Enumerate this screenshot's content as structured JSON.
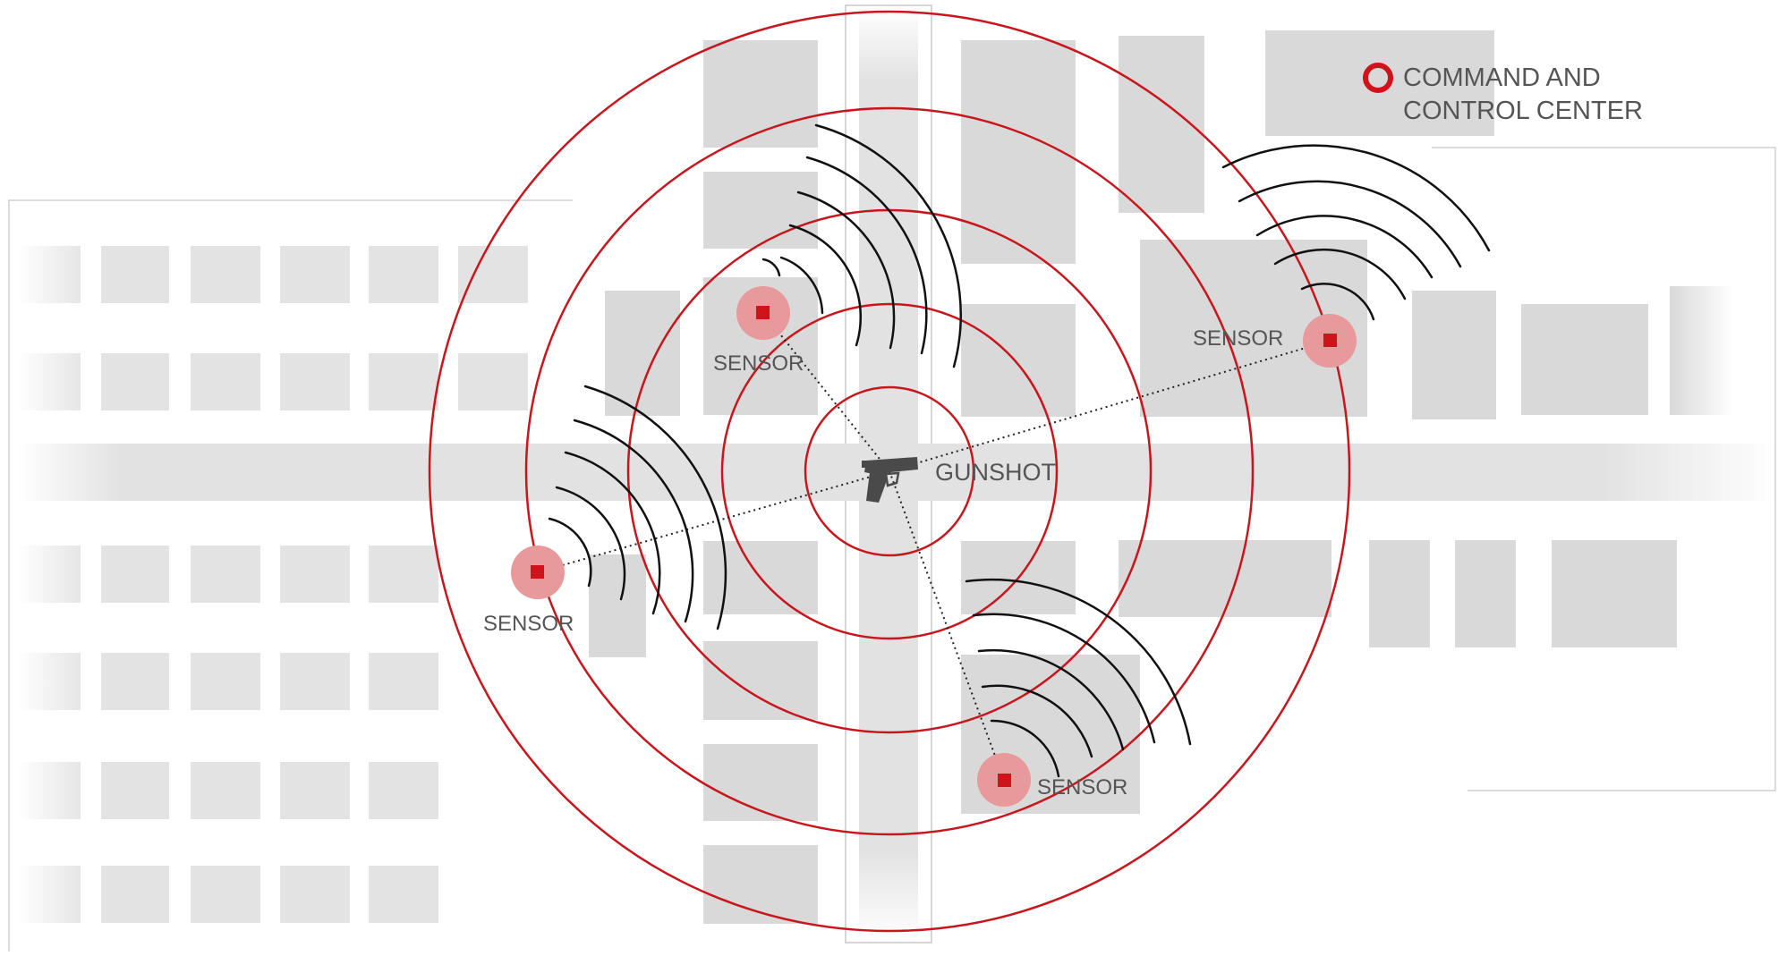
{
  "labels": {
    "gunshot": "GUNSHOT",
    "legend": [
      "COMMAND AND",
      "CONTROL CENTER"
    ],
    "sensors": [
      "SENSOR",
      "SENSOR",
      "SENSOR",
      "SENSOR"
    ]
  },
  "colors": {
    "ring": "#c8161d",
    "sensor_core": "#d0121b",
    "sensor_halo": "#e8999c",
    "building": "#d9d9d9",
    "text": "#555555",
    "wave": "#111111"
  },
  "icons": {
    "gunshot": "pistol-icon",
    "legend": "ring-marker-icon",
    "sensor": "sensor-marker-icon"
  }
}
